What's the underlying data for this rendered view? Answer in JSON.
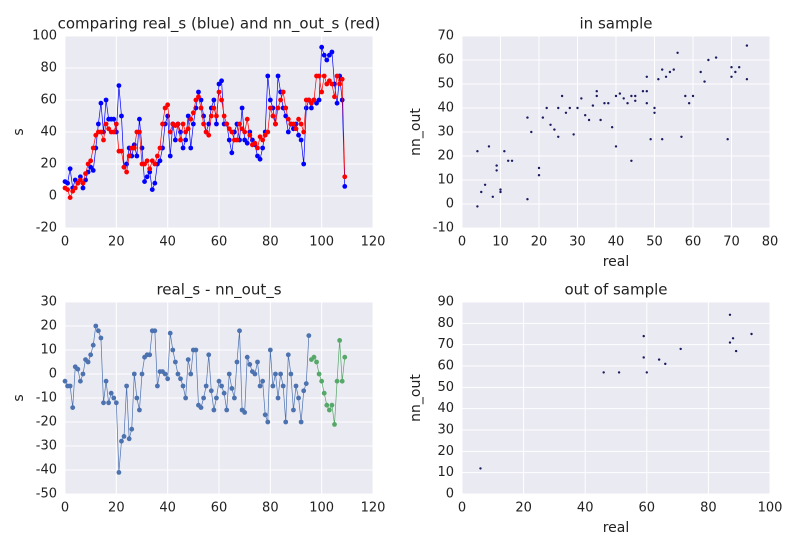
{
  "chart_data": [
    {
      "type": "line",
      "title": "comparing real_s (blue) and nn_out_s (red)",
      "ylabel": "s",
      "xlim": [
        0,
        120
      ],
      "ylim": [
        -20,
        100
      ],
      "xticks": [
        0,
        20,
        40,
        60,
        80,
        100,
        120
      ],
      "yticks": [
        -20,
        0,
        20,
        40,
        60,
        80,
        100
      ],
      "grid": true,
      "x": [
        0,
        1,
        2,
        3,
        4,
        5,
        6,
        7,
        8,
        9,
        10,
        11,
        12,
        13,
        14,
        15,
        16,
        17,
        18,
        19,
        20,
        21,
        22,
        23,
        24,
        25,
        26,
        27,
        28,
        29,
        30,
        31,
        32,
        33,
        34,
        35,
        36,
        37,
        38,
        39,
        40,
        41,
        42,
        43,
        44,
        45,
        46,
        47,
        48,
        49,
        50,
        51,
        52,
        53,
        54,
        55,
        56,
        57,
        58,
        59,
        60,
        61,
        62,
        63,
        64,
        65,
        66,
        67,
        68,
        69,
        70,
        71,
        72,
        73,
        74,
        75,
        76,
        77,
        78,
        79,
        80,
        81,
        82,
        83,
        84,
        85,
        86,
        87,
        88,
        89,
        90,
        91,
        92,
        93,
        94,
        95,
        96,
        97,
        98,
        99,
        100,
        101,
        102,
        103,
        104,
        105,
        106,
        107,
        108,
        109
      ],
      "series": [
        {
          "color": "#0000ff",
          "values": [
            9,
            8,
            17,
            5,
            10,
            8,
            12,
            5,
            10,
            15,
            18,
            16,
            30,
            45,
            58,
            40,
            60,
            48,
            48,
            48,
            40,
            69,
            50,
            18,
            20,
            30,
            25,
            32,
            25,
            48,
            30,
            9,
            12,
            15,
            4,
            8,
            20,
            22,
            30,
            45,
            50,
            25,
            45,
            35,
            45,
            40,
            30,
            35,
            50,
            30,
            45,
            55,
            65,
            60,
            50,
            40,
            45,
            55,
            60,
            45,
            70,
            72,
            45,
            45,
            35,
            27,
            40,
            45,
            35,
            55,
            35,
            33,
            40,
            35,
            32,
            25,
            23,
            30,
            40,
            75,
            60,
            55,
            45,
            75,
            65,
            55,
            50,
            40,
            45,
            42,
            45,
            38,
            35,
            20,
            55,
            60,
            55,
            60,
            58,
            60,
            93,
            88,
            85,
            88,
            90,
            70,
            58,
            75,
            60,
            6
          ]
        },
        {
          "color": "#ff0000",
          "values": [
            5,
            4,
            -1,
            3,
            5,
            8,
            10,
            8,
            14,
            20,
            22,
            30,
            38,
            40,
            40,
            35,
            45,
            42,
            40,
            40,
            45,
            28,
            28,
            18,
            15,
            25,
            30,
            30,
            40,
            40,
            20,
            20,
            22,
            17,
            22,
            20,
            25,
            30,
            45,
            55,
            57,
            40,
            45,
            44,
            45,
            35,
            45,
            40,
            42,
            48,
            52,
            60,
            62,
            55,
            45,
            40,
            38,
            50,
            55,
            50,
            65,
            60,
            50,
            45,
            42,
            40,
            35,
            35,
            45,
            42,
            40,
            48,
            38,
            32,
            33,
            30,
            37,
            35,
            38,
            40,
            55,
            50,
            45,
            55,
            60,
            65,
            55,
            48,
            45,
            45,
            42,
            48,
            45,
            40,
            60,
            60,
            58,
            60,
            75,
            75,
            65,
            75,
            70,
            72,
            70,
            62,
            75,
            70,
            73,
            12
          ]
        }
      ]
    },
    {
      "type": "scatter",
      "title": "in sample",
      "xlabel": "real",
      "ylabel": "nn_out",
      "xlim": [
        0,
        80
      ],
      "ylim": [
        -10,
        70
      ],
      "xticks": [
        0,
        10,
        20,
        30,
        40,
        50,
        60,
        70,
        80
      ],
      "yticks": [
        -10,
        0,
        10,
        20,
        30,
        40,
        50,
        60,
        70
      ],
      "grid": true,
      "series": [
        {
          "color": "#1a1a5e",
          "x": [
            4,
            4,
            5,
            6,
            7,
            8,
            9,
            9,
            10,
            10,
            11,
            12,
            13,
            17,
            17,
            18,
            20,
            20,
            21,
            22,
            23,
            24,
            25,
            25,
            26,
            27,
            28,
            29,
            30,
            31,
            32,
            33,
            34,
            35,
            35,
            36,
            37,
            38,
            39,
            40,
            40,
            41,
            42,
            43,
            44,
            44,
            45,
            47,
            48,
            48,
            49,
            50,
            50,
            51,
            52,
            53,
            54,
            56,
            57,
            58,
            59,
            60,
            62,
            63,
            64,
            66,
            69,
            70,
            70,
            71,
            72,
            74,
            74,
            48,
            55,
            52,
            45
          ],
          "values": [
            -1,
            22,
            5,
            8,
            24,
            3,
            14,
            16,
            5,
            6,
            22,
            18,
            18,
            36,
            2,
            30,
            12,
            15,
            36,
            40,
            33,
            31,
            28,
            40,
            45,
            38,
            40,
            29,
            40,
            44,
            37,
            35,
            41,
            45,
            47,
            35,
            42,
            42,
            32,
            24,
            45,
            46,
            44,
            42,
            45,
            18,
            45,
            47,
            42,
            53,
            27,
            40,
            38,
            52,
            56,
            53,
            55,
            63,
            28,
            45,
            42,
            45,
            55,
            51,
            60,
            61,
            27,
            53,
            57,
            55,
            57,
            66,
            52,
            47,
            56,
            27,
            43
          ]
        }
      ]
    },
    {
      "type": "line",
      "title": "real_s - nn_out_s",
      "ylabel": "s",
      "xlim": [
        0,
        120
      ],
      "ylim": [
        -50,
        30
      ],
      "xticks": [
        0,
        20,
        40,
        60,
        80,
        100,
        120
      ],
      "yticks": [
        -50,
        -40,
        -30,
        -20,
        -10,
        0,
        10,
        20,
        30
      ],
      "grid": true,
      "series": [
        {
          "color": "#4c72b0",
          "x": [
            0,
            1,
            2,
            3,
            4,
            5,
            6,
            7,
            8,
            9,
            10,
            11,
            12,
            13,
            14,
            15,
            16,
            17,
            18,
            19,
            20,
            21,
            22,
            23,
            24,
            25,
            26,
            27,
            28,
            29,
            30,
            31,
            32,
            33,
            34,
            35,
            36,
            37,
            38,
            39,
            40,
            41,
            42,
            43,
            44,
            45,
            46,
            47,
            48,
            49,
            50,
            51,
            52,
            53,
            54,
            55,
            56,
            57,
            58,
            59,
            60,
            61,
            62,
            63,
            64,
            65,
            66,
            67,
            68,
            69,
            70,
            71,
            72,
            73,
            74,
            75,
            76,
            77,
            78,
            79,
            80,
            81,
            82,
            83,
            84,
            85,
            86,
            87,
            88,
            89,
            90,
            91,
            92,
            93,
            94,
            95
          ],
          "values": [
            -3,
            -5,
            -5,
            -14,
            3,
            2,
            -3,
            0,
            6,
            5,
            8,
            12,
            20,
            18,
            15,
            -12,
            -3,
            -12,
            -8,
            -10,
            -12,
            -41,
            -28,
            -26,
            -5,
            -27,
            -23,
            0,
            -10,
            -15,
            0,
            7,
            8,
            8,
            18,
            18,
            -5,
            1,
            1,
            0,
            -2,
            17,
            10,
            5,
            0,
            -2,
            -5,
            -10,
            6,
            0,
            10,
            10,
            -13,
            -14,
            -10,
            -5,
            8,
            -7,
            -15,
            -10,
            -3,
            -5,
            -8,
            -15,
            0,
            -6,
            -10,
            5,
            18,
            -15,
            -16,
            7,
            4,
            1,
            0,
            5,
            -5,
            -3,
            -17,
            -20,
            10,
            -5,
            0,
            -10,
            0,
            -5,
            -20,
            8,
            0,
            -15,
            -5,
            -10,
            -20,
            -7,
            -4,
            16
          ]
        },
        {
          "color": "#55a868",
          "x": [
            96,
            97,
            98,
            99,
            100,
            101,
            102,
            103,
            104,
            105,
            106,
            107,
            108,
            109
          ],
          "values": [
            6,
            7,
            5,
            0,
            -3,
            -8,
            -13,
            -15,
            -13,
            -21,
            -3,
            14,
            -3,
            7
          ]
        }
      ]
    },
    {
      "type": "scatter",
      "title": "out of sample",
      "xlabel": "real",
      "ylabel": "nn_out",
      "xlim": [
        0,
        100
      ],
      "ylim": [
        0,
        90
      ],
      "xticks": [
        0,
        20,
        40,
        60,
        80,
        100
      ],
      "yticks": [
        0,
        10,
        20,
        30,
        40,
        50,
        60,
        70,
        80,
        90
      ],
      "grid": true,
      "series": [
        {
          "color": "#1a1a5e",
          "x": [
            6,
            46,
            51,
            59,
            59,
            60,
            64,
            66,
            71,
            87,
            87,
            88,
            89,
            94
          ],
          "values": [
            12,
            57,
            57,
            74,
            64,
            57,
            63,
            61,
            68,
            84,
            71,
            73,
            67,
            75
          ]
        }
      ]
    }
  ]
}
